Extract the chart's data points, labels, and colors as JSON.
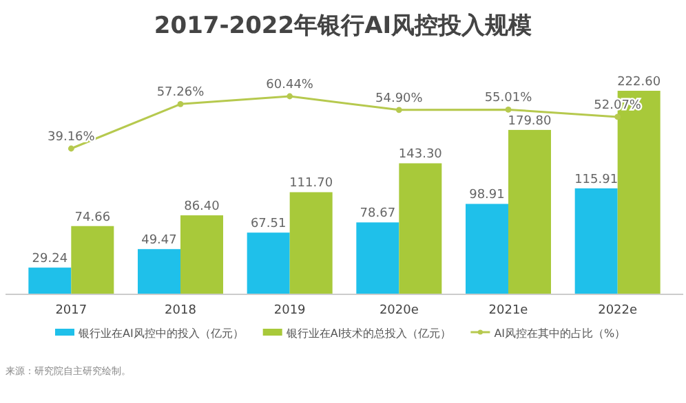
{
  "chart_data": {
    "type": "bar",
    "title": "2017-2022年银行AI风控投入规模",
    "categories": [
      "2017",
      "2018",
      "2019",
      "2020e",
      "2021e",
      "2022e"
    ],
    "series": [
      {
        "name": "银行业在AI风控中的投入（亿元）",
        "color": "#1fc0ea",
        "values": [
          29.24,
          49.47,
          67.51,
          78.67,
          98.91,
          115.91
        ],
        "value_labels": [
          "29.24",
          "49.47",
          "67.51",
          "78.67",
          "98.91",
          "115.91"
        ]
      },
      {
        "name": "银行业在AI技术的总投入（亿元）",
        "color": "#a8c93a",
        "values": [
          74.66,
          86.4,
          111.7,
          143.3,
          179.8,
          222.6
        ],
        "value_labels": [
          "74.66",
          "86.40",
          "111.70",
          "143.30",
          "179.80",
          "222.60"
        ]
      },
      {
        "name": "AI风控在其中的占比（%）",
        "type": "line",
        "axis": "y2",
        "color": "#b6c94e",
        "marker": "circle",
        "values": [
          39.16,
          57.26,
          60.44,
          54.9,
          55.01,
          52.07
        ],
        "value_labels": [
          "39.16%",
          "57.26%",
          "60.44%",
          "54.90%",
          "55.01%",
          "52.07%"
        ]
      }
    ],
    "legend": "bottom",
    "annotations": [
      "来源：研究院自主研究绘制。"
    ]
  }
}
